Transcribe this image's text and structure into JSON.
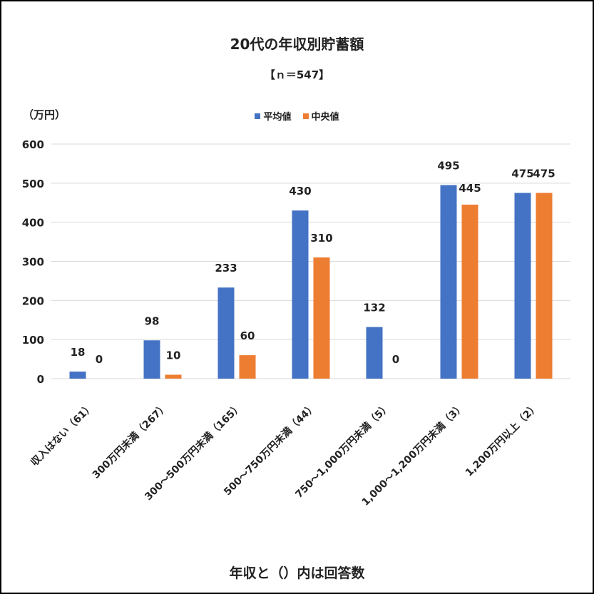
{
  "chart_data": {
    "type": "bar",
    "title": "20代の年収別貯蓄額",
    "subtitle": "【ｎ＝547】",
    "ylabel": "（万円）",
    "xlabel": "年収と（）内は回答数",
    "ylim": [
      0,
      600
    ],
    "yticks": [
      "0",
      "100",
      "200",
      "300",
      "400",
      "500",
      "600"
    ],
    "categories": [
      "収入はない（61）",
      "300万円未満（267）",
      "300～500万円未満（165）",
      "500～750万円未満（44）",
      "750～1,000万円未満（5）",
      "1,000～1,200万円未満（3）",
      "1,200万円以上（2）"
    ],
    "series": [
      {
        "name": "平均値",
        "color": "#4472C4",
        "values": [
          18,
          98,
          233,
          430,
          132,
          495,
          475
        ]
      },
      {
        "name": "中央値",
        "color": "#ED7D31",
        "values": [
          0,
          10,
          60,
          310,
          0,
          445,
          475
        ]
      }
    ],
    "grid": true,
    "legend_position": "top-center"
  }
}
